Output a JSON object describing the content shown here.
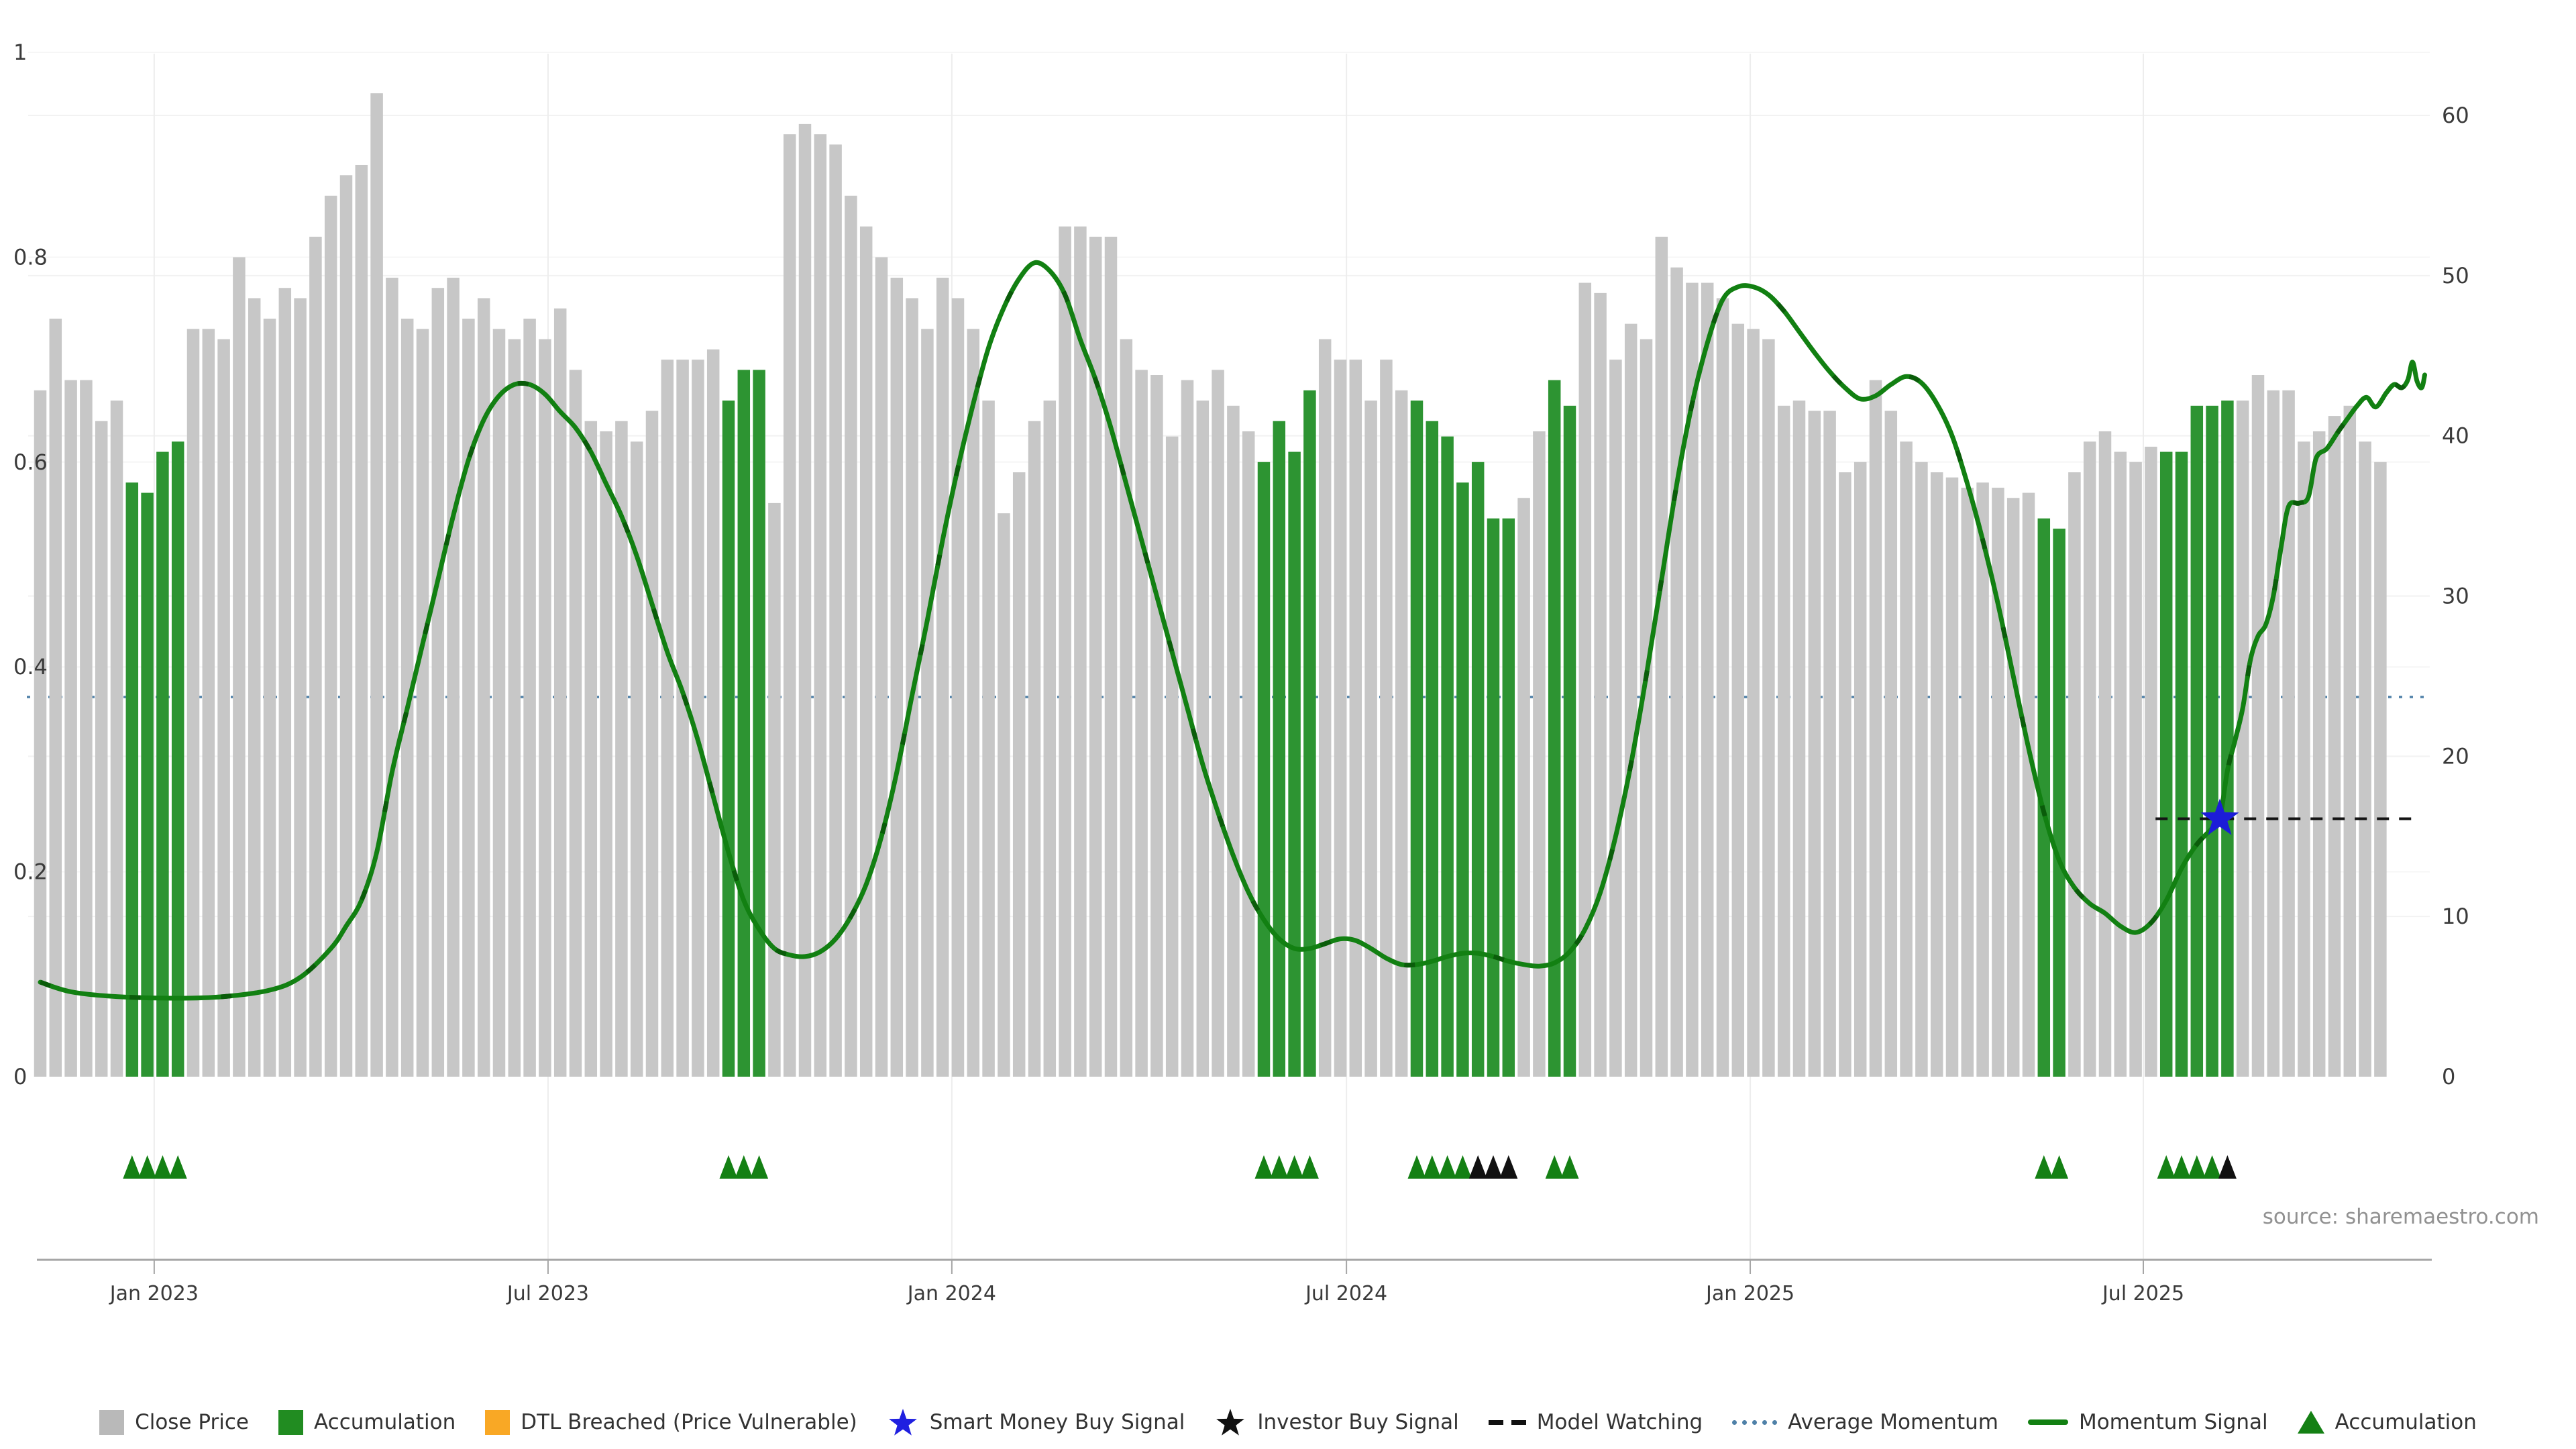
{
  "source": "source: sharemaestro.com",
  "colors": {
    "close_price_bar": "#c7c7c7",
    "accumulation_bar": "#2d9432",
    "momentum_line": "#128012",
    "momentum_line_dash": "#0a5c0a",
    "average_momentum": "#4f81a8",
    "model_watching": "#141414",
    "smart_money_star": "#1c1cd8",
    "triangle_green": "#148014",
    "triangle_black": "#111111",
    "axis_text": "#3a3a3a",
    "grid_light": "#f2f2f2",
    "axis_line": "#a6a6a6"
  },
  "chart_data": {
    "type": "bar",
    "title": "",
    "xlabel": "",
    "ylabel_left": "",
    "ylabel_right": "",
    "x_axis": {
      "tick_labels": [
        "Jan 2023",
        "Jul 2023",
        "Jan 2024",
        "Jul 2024",
        "Jan 2025",
        "Jul 2025"
      ],
      "tick_indices": [
        7.45,
        33.2,
        59.6,
        85.4,
        111.8,
        137.5
      ]
    },
    "y_axis_left": {
      "tick_labels": [
        "0",
        "0.2",
        "0.4",
        "0.6",
        "0.8",
        "1"
      ],
      "range": [
        0,
        1
      ]
    },
    "y_axis_right": {
      "tick_labels": [
        "0",
        "10",
        "20",
        "30",
        "40",
        "50",
        "60"
      ],
      "range": [
        0,
        60
      ]
    },
    "bars": {
      "series_name": "Close Price (normalised)",
      "values": [
        0.67,
        0.74,
        0.68,
        0.68,
        0.64,
        0.66,
        0.58,
        0.57,
        0.61,
        0.62,
        0.73,
        0.73,
        0.72,
        0.8,
        0.76,
        0.74,
        0.77,
        0.76,
        0.82,
        0.86,
        0.88,
        0.89,
        0.96,
        0.78,
        0.74,
        0.73,
        0.77,
        0.78,
        0.74,
        0.76,
        0.73,
        0.72,
        0.74,
        0.72,
        0.75,
        0.69,
        0.64,
        0.63,
        0.64,
        0.62,
        0.65,
        0.7,
        0.7,
        0.7,
        0.71,
        0.66,
        0.69,
        0.69,
        0.56,
        0.92,
        0.93,
        0.92,
        0.91,
        0.86,
        0.83,
        0.8,
        0.78,
        0.76,
        0.73,
        0.78,
        0.76,
        0.73,
        0.66,
        0.55,
        0.59,
        0.64,
        0.66,
        0.83,
        0.83,
        0.82,
        0.82,
        0.72,
        0.69,
        0.685,
        0.625,
        0.68,
        0.66,
        0.69,
        0.655,
        0.63,
        0.6,
        0.64,
        0.61,
        0.67,
        0.72,
        0.7,
        0.7,
        0.66,
        0.7,
        0.67,
        0.66,
        0.64,
        0.625,
        0.58,
        0.6,
        0.545,
        0.545,
        0.565,
        0.63,
        0.68,
        0.655,
        0.775,
        0.765,
        0.7,
        0.735,
        0.72,
        0.82,
        0.79,
        0.775,
        0.775,
        0.76,
        0.735,
        0.73,
        0.72,
        0.655,
        0.66,
        0.65,
        0.65,
        0.59,
        0.6,
        0.68,
        0.65,
        0.62,
        0.6,
        0.59,
        0.585,
        0.575,
        0.58,
        0.575,
        0.565,
        0.57,
        0.545,
        0.535,
        0.59,
        0.62,
        0.63,
        0.61,
        0.6,
        0.615,
        0.61,
        0.61,
        0.655,
        0.655,
        0.66,
        0.66,
        0.685,
        0.67,
        0.67,
        0.62,
        0.63,
        0.645,
        0.655,
        0.62,
        0.6
      ],
      "accumulation_indices": [
        6,
        7,
        8,
        9,
        45,
        46,
        47,
        80,
        81,
        82,
        83,
        90,
        91,
        92,
        93,
        94,
        95,
        96,
        99,
        100,
        131,
        132,
        139,
        140,
        141,
        142,
        143
      ]
    },
    "momentum_signal": {
      "axis": "right",
      "points": [
        [
          0,
          5.9
        ],
        [
          2,
          5.3
        ],
        [
          5,
          5.0
        ],
        [
          9,
          4.9
        ],
        [
          12,
          5.0
        ],
        [
          15,
          5.4
        ],
        [
          17,
          6.2
        ],
        [
          19,
          8.0
        ],
        [
          20,
          9.4
        ],
        [
          21,
          11.0
        ],
        [
          22,
          14.0
        ],
        [
          23,
          19.0
        ],
        [
          24,
          23.0
        ],
        [
          25,
          27.0
        ],
        [
          26,
          31.0
        ],
        [
          27,
          35.0
        ],
        [
          28,
          38.5
        ],
        [
          29,
          41.0
        ],
        [
          30,
          42.5
        ],
        [
          31,
          43.2
        ],
        [
          32,
          43.2
        ],
        [
          33,
          42.6
        ],
        [
          34,
          41.5
        ],
        [
          35,
          40.5
        ],
        [
          36,
          39.0
        ],
        [
          37,
          37.0
        ],
        [
          38,
          35.0
        ],
        [
          39,
          32.5
        ],
        [
          40,
          29.5
        ],
        [
          41,
          26.5
        ],
        [
          42,
          24.0
        ],
        [
          43,
          21.0
        ],
        [
          44,
          17.5
        ],
        [
          45,
          14.0
        ],
        [
          46,
          11.0
        ],
        [
          47,
          9.2
        ],
        [
          48,
          8.0
        ],
        [
          49,
          7.6
        ],
        [
          50,
          7.5
        ],
        [
          51,
          7.8
        ],
        [
          52,
          8.6
        ],
        [
          53,
          10.0
        ],
        [
          54,
          12.0
        ],
        [
          55,
          15.0
        ],
        [
          56,
          19.0
        ],
        [
          57,
          23.8
        ],
        [
          58,
          28.5
        ],
        [
          59,
          33.5
        ],
        [
          60,
          38.0
        ],
        [
          61,
          42.0
        ],
        [
          62,
          45.5
        ],
        [
          63,
          48.0
        ],
        [
          64,
          49.8
        ],
        [
          65,
          50.8
        ],
        [
          66,
          50.3
        ],
        [
          67,
          48.8
        ],
        [
          68,
          46.0
        ],
        [
          69,
          43.5
        ],
        [
          70,
          40.5
        ],
        [
          71,
          37.0
        ],
        [
          72,
          33.5
        ],
        [
          73,
          30.0
        ],
        [
          74,
          26.5
        ],
        [
          75,
          23.0
        ],
        [
          76,
          19.5
        ],
        [
          77,
          16.5
        ],
        [
          78,
          13.8
        ],
        [
          79,
          11.5
        ],
        [
          80,
          9.8
        ],
        [
          81,
          8.6
        ],
        [
          82,
          8.0
        ],
        [
          83,
          8.0
        ],
        [
          84,
          8.3
        ],
        [
          85,
          8.6
        ],
        [
          86,
          8.5
        ],
        [
          87,
          8.0
        ],
        [
          88,
          7.4
        ],
        [
          89,
          7.0
        ],
        [
          90,
          7.0
        ],
        [
          91,
          7.2
        ],
        [
          92,
          7.5
        ],
        [
          93,
          7.7
        ],
        [
          94,
          7.7
        ],
        [
          95,
          7.5
        ],
        [
          96,
          7.2
        ],
        [
          97,
          7.0
        ],
        [
          98,
          6.9
        ],
        [
          99,
          7.1
        ],
        [
          100,
          7.8
        ],
        [
          101,
          9.2
        ],
        [
          102,
          11.5
        ],
        [
          103,
          15.0
        ],
        [
          104,
          19.5
        ],
        [
          105,
          25.0
        ],
        [
          106,
          31.0
        ],
        [
          107,
          37.0
        ],
        [
          108,
          42.0
        ],
        [
          109,
          45.8
        ],
        [
          110,
          48.5
        ],
        [
          111,
          49.3
        ],
        [
          112,
          49.3
        ],
        [
          113,
          48.8
        ],
        [
          114,
          47.8
        ],
        [
          115,
          46.5
        ],
        [
          116,
          45.2
        ],
        [
          117,
          44.0
        ],
        [
          118,
          43.0
        ],
        [
          119,
          42.3
        ],
        [
          120,
          42.5
        ],
        [
          121,
          43.2
        ],
        [
          122,
          43.7
        ],
        [
          123,
          43.3
        ],
        [
          124,
          42.0
        ],
        [
          125,
          40.0
        ],
        [
          126,
          37.0
        ],
        [
          127,
          33.5
        ],
        [
          128,
          29.5
        ],
        [
          129,
          25.0
        ],
        [
          130,
          20.5
        ],
        [
          131,
          16.5
        ],
        [
          132,
          13.5
        ],
        [
          133,
          11.8
        ],
        [
          134,
          10.8
        ],
        [
          135,
          10.2
        ],
        [
          136,
          9.4
        ],
        [
          137,
          9.0
        ],
        [
          138,
          9.6
        ],
        [
          139,
          11.0
        ],
        [
          140,
          13.0
        ],
        [
          141,
          14.5
        ],
        [
          142,
          15.5
        ],
        [
          142.5,
          16.1
        ],
        [
          143,
          19.1
        ],
        [
          143.5,
          21.0
        ],
        [
          144,
          23.0
        ],
        [
          144.5,
          26.0
        ],
        [
          145,
          27.5
        ],
        [
          145.5,
          28.2
        ],
        [
          146,
          30.0
        ],
        [
          146.5,
          33.0
        ],
        [
          147,
          35.6
        ],
        [
          147.7,
          35.8
        ],
        [
          148.3,
          36.2
        ],
        [
          148.8,
          38.6
        ],
        [
          149.5,
          39.2
        ],
        [
          150.2,
          40.2
        ],
        [
          150.8,
          41.0
        ],
        [
          151.5,
          41.9
        ],
        [
          152.1,
          42.4
        ],
        [
          152.7,
          41.8
        ],
        [
          153.4,
          42.7
        ],
        [
          153.9,
          43.2
        ],
        [
          154.4,
          43.0
        ],
        [
          154.8,
          43.5
        ],
        [
          155.1,
          44.6
        ],
        [
          155.4,
          43.4
        ],
        [
          155.7,
          43.0
        ],
        [
          155.9,
          43.8
        ]
      ]
    },
    "average_momentum": {
      "axis": "right",
      "value": 23.7
    },
    "model_watching": {
      "axis": "right",
      "value": 16.1,
      "from_index": 138.3,
      "to_index": 155.3
    },
    "smart_money_buy_signal": {
      "index": 142.5,
      "value": 16.1
    },
    "markers": {
      "green_triangle_indices": [
        6,
        7,
        8,
        9,
        45,
        46,
        47,
        80,
        81,
        82,
        83,
        90,
        91,
        92,
        93,
        99,
        100,
        131,
        132,
        139,
        140,
        141,
        142
      ],
      "black_triangle_indices": [
        94,
        95,
        96,
        143
      ]
    }
  },
  "legend": {
    "items": [
      {
        "slug": "close-price",
        "type": "square",
        "color": "#b9b9b9",
        "label": "Close Price"
      },
      {
        "slug": "accumulation",
        "type": "square",
        "color": "#218c21",
        "label": "Accumulation"
      },
      {
        "slug": "dtl-breached",
        "type": "square",
        "color": "#F9A825",
        "label": "DTL Breached (Price Vulnerable)"
      },
      {
        "slug": "smart-money-buy-signal",
        "type": "star",
        "color": "#2020e0",
        "label": "Smart Money Buy Signal"
      },
      {
        "slug": "investor-buy-signal",
        "type": "star",
        "color": "#111111",
        "label": "Investor Buy Signal"
      },
      {
        "slug": "model-watching",
        "type": "dash",
        "color": "#111111",
        "label": "Model Watching"
      },
      {
        "slug": "average-momentum",
        "type": "dots",
        "color": "#4f81a8",
        "label": "Average Momentum"
      },
      {
        "slug": "momentum-signal",
        "type": "line",
        "color": "#128012",
        "label": "Momentum Signal"
      },
      {
        "slug": "accumulation-marker",
        "type": "triangle",
        "color": "#148014",
        "label": "Accumulation"
      }
    ]
  }
}
